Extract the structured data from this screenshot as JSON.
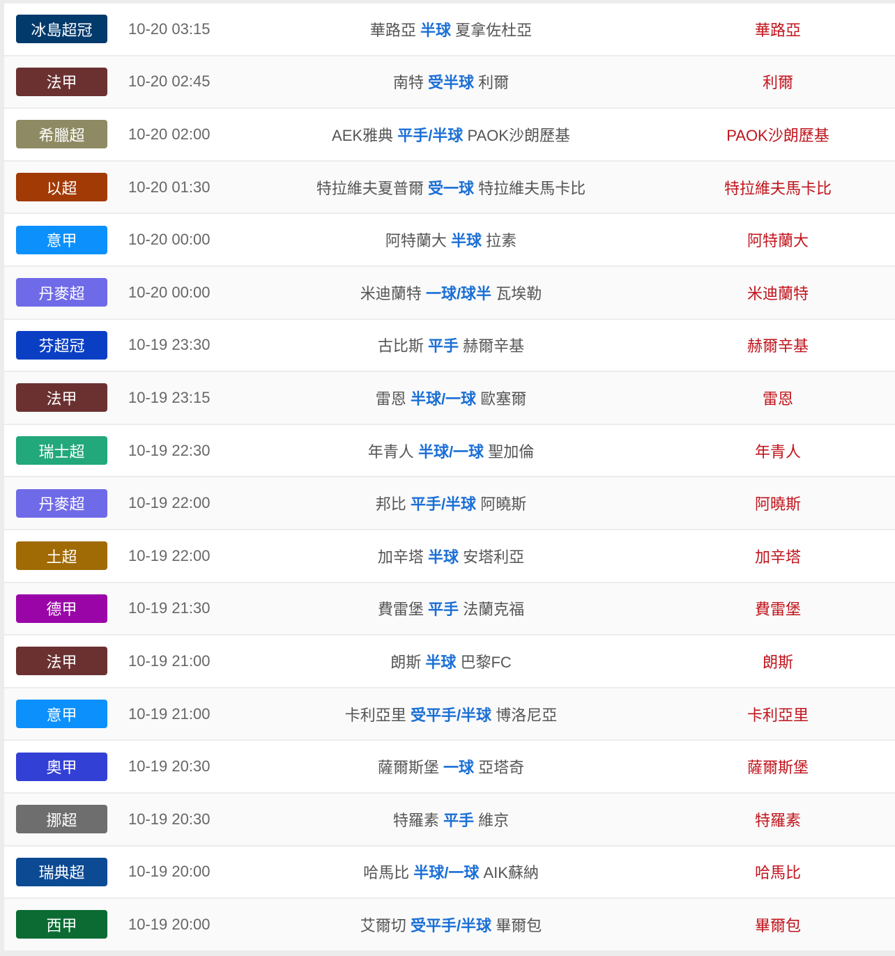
{
  "matches": [
    {
      "league": "冰島超冠",
      "league_color": "#023a6c",
      "time": "10-20 03:15",
      "home": "華路亞",
      "handicap": "半球",
      "away": "夏拿佐杜亞",
      "tip": "華路亞"
    },
    {
      "league": "法甲",
      "league_color": "#6b3131",
      "time": "10-20 02:45",
      "home": "南特",
      "handicap": "受半球",
      "away": "利爾",
      "tip": "利爾"
    },
    {
      "league": "希臘超",
      "league_color": "#8e8a63",
      "time": "10-20 02:00",
      "home": "AEK雅典",
      "handicap": "平手/半球",
      "away": "PAOK沙朗歷基",
      "tip": "PAOK沙朗歷基"
    },
    {
      "league": "以超",
      "league_color": "#a23a06",
      "time": "10-20 01:30",
      "home": "特拉維夫夏普爾",
      "handicap": "受一球",
      "away": "特拉維夫馬卡比",
      "tip": "特拉維夫馬卡比"
    },
    {
      "league": "意甲",
      "league_color": "#0c90fc",
      "time": "10-20 00:00",
      "home": "阿特蘭大",
      "handicap": "半球",
      "away": "拉素",
      "tip": "阿特蘭大"
    },
    {
      "league": "丹麥超",
      "league_color": "#6f6ae8",
      "time": "10-20 00:00",
      "home": "米迪蘭特",
      "handicap": "一球/球半",
      "away": "瓦埃勒",
      "tip": "米迪蘭特"
    },
    {
      "league": "芬超冠",
      "league_color": "#0a3fc4",
      "time": "10-19 23:30",
      "home": "古比斯",
      "handicap": "平手",
      "away": "赫爾辛基",
      "tip": "赫爾辛基"
    },
    {
      "league": "法甲",
      "league_color": "#6b3131",
      "time": "10-19 23:15",
      "home": "雷恩",
      "handicap": "半球/一球",
      "away": "歐塞爾",
      "tip": "雷恩"
    },
    {
      "league": "瑞士超",
      "league_color": "#22a87a",
      "time": "10-19 22:30",
      "home": "年青人",
      "handicap": "半球/一球",
      "away": "聖加倫",
      "tip": "年青人"
    },
    {
      "league": "丹麥超",
      "league_color": "#6f6ae8",
      "time": "10-19 22:00",
      "home": "邦比",
      "handicap": "平手/半球",
      "away": "阿曉斯",
      "tip": "阿曉斯"
    },
    {
      "league": "土超",
      "league_color": "#a06a04",
      "time": "10-19 22:00",
      "home": "加辛塔",
      "handicap": "半球",
      "away": "安塔利亞",
      "tip": "加辛塔"
    },
    {
      "league": "德甲",
      "league_color": "#9a05a8",
      "time": "10-19 21:30",
      "home": "費雷堡",
      "handicap": "平手",
      "away": "法蘭克福",
      "tip": "費雷堡"
    },
    {
      "league": "法甲",
      "league_color": "#6b3131",
      "time": "10-19 21:00",
      "home": "朗斯",
      "handicap": "半球",
      "away": "巴黎FC",
      "tip": "朗斯"
    },
    {
      "league": "意甲",
      "league_color": "#0c90fc",
      "time": "10-19 21:00",
      "home": "卡利亞里",
      "handicap": "受平手/半球",
      "away": "博洛尼亞",
      "tip": "卡利亞里"
    },
    {
      "league": "奧甲",
      "league_color": "#3340d6",
      "time": "10-19 20:30",
      "home": "薩爾斯堡",
      "handicap": "一球",
      "away": "亞塔奇",
      "tip": "薩爾斯堡"
    },
    {
      "league": "挪超",
      "league_color": "#6e6e6e",
      "time": "10-19 20:30",
      "home": "特羅素",
      "handicap": "平手",
      "away": "維京",
      "tip": "特羅素"
    },
    {
      "league": "瑞典超",
      "league_color": "#0c4a94",
      "time": "10-19 20:00",
      "home": "哈馬比",
      "handicap": "半球/一球",
      "away": "AIK蘇納",
      "tip": "哈馬比"
    },
    {
      "league": "西甲",
      "league_color": "#0b6b33",
      "time": "10-19 20:00",
      "home": "艾爾切",
      "handicap": "受平手/半球",
      "away": "畢爾包",
      "tip": "畢爾包"
    }
  ]
}
